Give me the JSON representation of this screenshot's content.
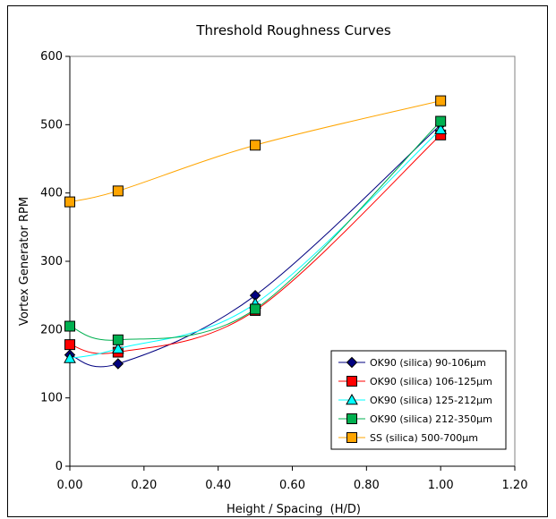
{
  "chart_data": {
    "type": "line",
    "title": "Threshold Roughness Curves",
    "xlabel": "Height / Spacing  (H/D)",
    "ylabel": "Vortex Generator RPM",
    "xlim": [
      0,
      1.2
    ],
    "ylim": [
      0,
      600
    ],
    "xticks": [
      "0.00",
      "0.20",
      "0.40",
      "0.60",
      "0.80",
      "1.00",
      "1.20"
    ],
    "yticks": [
      "0",
      "100",
      "200",
      "300",
      "400",
      "500",
      "600"
    ],
    "grid": false,
    "legend_position": "bottom-right",
    "series": [
      {
        "name": "OK90 (silica) 90-106µm",
        "color": "#000080",
        "marker": "diamond",
        "x": [
          0.0,
          0.13,
          0.5,
          1.0
        ],
        "y": [
          163,
          150,
          250,
          500
        ]
      },
      {
        "name": "OK90 (silica) 106-125µm",
        "color": "#FF0000",
        "marker": "square",
        "x": [
          0.0,
          0.13,
          0.5,
          1.0
        ],
        "y": [
          178,
          167,
          228,
          485
        ]
      },
      {
        "name": "OK90 (silica) 125-212µm",
        "color": "#00FFFF",
        "marker": "triangle",
        "x": [
          0.0,
          0.13,
          0.5,
          1.0
        ],
        "y": [
          158,
          172,
          238,
          493
        ]
      },
      {
        "name": "OK90 (silica) 212-350µm",
        "color": "#00B050",
        "marker": "square",
        "x": [
          0.0,
          0.13,
          0.5,
          1.0
        ],
        "y": [
          205,
          185,
          230,
          505
        ]
      },
      {
        "name": "SS (silica) 500-700µm",
        "color": "#FFA500",
        "marker": "square",
        "x": [
          0.0,
          0.13,
          0.5,
          1.0
        ],
        "y": [
          387,
          403,
          470,
          535
        ]
      }
    ]
  }
}
